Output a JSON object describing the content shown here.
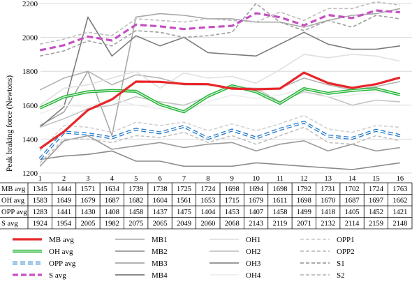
{
  "chart_data": {
    "type": "line",
    "ylabel": "Peak braking force (Newtons)",
    "ylim": [
      1200,
      2200
    ],
    "yticks": [
      1200,
      1400,
      1600,
      1800,
      2000,
      2200
    ],
    "x": [
      "1",
      "2",
      "3",
      "4",
      "5",
      "6",
      "7",
      "8",
      "9",
      "10",
      "11",
      "12",
      "13",
      "14",
      "15",
      "16"
    ],
    "grid": true,
    "legend_placement": "bottom",
    "series": [
      {
        "name": "MB avg",
        "color": "#e8262a",
        "style": "solid",
        "role": "avg",
        "values": [
          1345,
          1444,
          1571,
          1634,
          1739,
          1738,
          1725,
          1724,
          1698,
          1694,
          1698,
          1792,
          1731,
          1702,
          1724,
          1763
        ]
      },
      {
        "name": "OH avg",
        "color": "#27b53a",
        "style": "solid",
        "role": "avg",
        "values": [
          1583,
          1649,
          1679,
          1687,
          1682,
          1604,
          1561,
          1653,
          1715,
          1679,
          1611,
          1698,
          1670,
          1687,
          1697,
          1662
        ]
      },
      {
        "name": "OPP avg",
        "color": "#1f78c8",
        "style": "dash",
        "role": "avg",
        "values": [
          1283,
          1441,
          1430,
          1408,
          1458,
          1437,
          1475,
          1404,
          1453,
          1407,
          1458,
          1499,
          1418,
          1405,
          1452,
          1421
        ]
      },
      {
        "name": "S avg",
        "color": "#c64fc4",
        "style": "dash",
        "role": "avg",
        "values": [
          1924,
          1954,
          2005,
          1982,
          2075,
          2065,
          2049,
          2060,
          2068,
          2143,
          2119,
          2071,
          2132,
          2114,
          2159,
          2148
        ]
      },
      {
        "name": "MB1",
        "color": "#b4b4b4",
        "style": "solid",
        "role": "trial",
        "values": [
          1690,
          1760,
          1800,
          1720,
          1780,
          1760,
          1720,
          1720,
          1700,
          1700,
          1700,
          1760,
          1720,
          1690,
          1710,
          1740
        ]
      },
      {
        "name": "MB2",
        "color": "#9a9a9a",
        "style": "solid",
        "role": "trial",
        "values": [
          1240,
          1390,
          1420,
          1340,
          1360,
          1380,
          1350,
          1370,
          1380,
          1330,
          1370,
          1390,
          1330,
          1370,
          1330,
          1350
        ]
      },
      {
        "name": "MB3",
        "color": "#a8a8a8",
        "style": "solid",
        "role": "trial",
        "values": [
          1480,
          1560,
          1800,
          1420,
          2120,
          2140,
          2130,
          2110,
          2110,
          2090,
          2090,
          2060,
          2100,
          2130,
          2140,
          2170
        ]
      },
      {
        "name": "MB4",
        "color": "#7a7a7a",
        "style": "solid",
        "role": "trial",
        "values": [
          1470,
          1590,
          2120,
          1890,
          2010,
          1950,
          2000,
          1910,
          1900,
          1890,
          1960,
          2030,
          1960,
          1930,
          1930,
          1950
        ]
      },
      {
        "name": "OH1",
        "color": "#e0e0e0",
        "style": "solid",
        "role": "trial",
        "values": [
          1600,
          1700,
          1720,
          1760,
          1800,
          1700,
          1790,
          1760,
          1770,
          1730,
          1810,
          1900,
          1880,
          1900,
          1890,
          1860
        ]
      },
      {
        "name": "OH2",
        "color": "#c4c4c4",
        "style": "solid",
        "role": "trial",
        "values": [
          1470,
          1520,
          1580,
          1600,
          1650,
          1620,
          1600,
          1650,
          1710,
          1700,
          1620,
          1680,
          1650,
          1600,
          1630,
          1620
        ]
      },
      {
        "name": "OH3",
        "color": "#8c8c8c",
        "style": "solid",
        "role": "trial",
        "values": [
          1280,
          1300,
          1310,
          1330,
          1270,
          1270,
          1240,
          1240,
          1240,
          1260,
          1250,
          1240,
          1230,
          1220,
          1240,
          1260
        ]
      },
      {
        "name": "OH4",
        "color": "#eeeeee",
        "style": "solid",
        "role": "trial",
        "values": [
          1550,
          1600,
          1590,
          1640,
          1600,
          1580,
          1560,
          1620,
          1660,
          1640,
          1660,
          1700,
          1650,
          1660,
          1680,
          1670
        ]
      },
      {
        "name": "OPP1",
        "color": "#d0d0d0",
        "style": "dash",
        "role": "trial",
        "values": [
          1330,
          1480,
          1470,
          1440,
          1500,
          1480,
          1500,
          1450,
          1490,
          1450,
          1490,
          1540,
          1460,
          1440,
          1480,
          1470
        ]
      },
      {
        "name": "OPP2",
        "color": "#c0c0c0",
        "style": "dash",
        "role": "trial",
        "values": [
          1260,
          1400,
          1400,
          1380,
          1420,
          1410,
          1440,
          1380,
          1420,
          1370,
          1420,
          1470,
          1380,
          1370,
          1420,
          1390
        ]
      },
      {
        "name": "S1",
        "color": "#9e9e9e",
        "style": "dash",
        "role": "trial",
        "values": [
          1890,
          1920,
          1980,
          1950,
          2040,
          2030,
          2000,
          2010,
          2030,
          2200,
          2090,
          2040,
          2100,
          2060,
          2130,
          2110
        ]
      },
      {
        "name": "S2",
        "color": "#bcbcbc",
        "style": "dash",
        "role": "trial",
        "values": [
          1960,
          1990,
          2030,
          2010,
          2110,
          2100,
          2090,
          2110,
          2100,
          2090,
          2150,
          2100,
          2170,
          2170,
          2210,
          2190
        ]
      }
    ],
    "table": {
      "rows": [
        {
          "label": "MB avg",
          "values": [
            "1345",
            "1444",
            "1571",
            "1634",
            "1739",
            "1738",
            "1725",
            "1724",
            "1698",
            "1694",
            "1698",
            "1792",
            "1731",
            "1702",
            "1724",
            "1763"
          ]
        },
        {
          "label": "OH avg",
          "values": [
            "1583",
            "1649",
            "1679",
            "1687",
            "1682",
            "1604",
            "1561",
            "1653",
            "1715",
            "1679",
            "1611",
            "1698",
            "1670",
            "1687",
            "1697",
            "1662"
          ]
        },
        {
          "label": "OPP avg",
          "values": [
            "1283",
            "1441",
            "1430",
            "1408",
            "1458",
            "1437",
            "1475",
            "1404",
            "1453",
            "1407",
            "1458",
            "1499",
            "1418",
            "1405",
            "1452",
            "1421"
          ]
        },
        {
          "label": "S avg",
          "values": [
            "1924",
            "1954",
            "2005",
            "1982",
            "2075",
            "2065",
            "2049",
            "2060",
            "2068",
            "2143",
            "2119",
            "2071",
            "2132",
            "2114",
            "2159",
            "2148"
          ]
        }
      ]
    },
    "legend": {
      "columns": [
        [
          "MB avg",
          "OH avg",
          "OPP avg",
          "S avg"
        ],
        [
          "MB1",
          "MB2",
          "MB3",
          "MB4"
        ],
        [
          "OH1",
          "OH2",
          "OH3",
          "OH4"
        ],
        [
          "OPP1",
          "OPP2",
          "S1",
          "S2"
        ]
      ]
    }
  }
}
